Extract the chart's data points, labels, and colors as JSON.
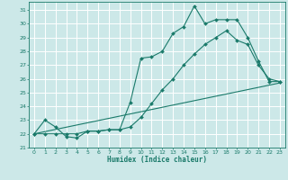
{
  "xlabel": "Humidex (Indice chaleur)",
  "bg_color": "#cce8e8",
  "grid_color": "#ffffff",
  "line_color": "#1a7a6a",
  "xlim": [
    -0.5,
    23.5
  ],
  "ylim": [
    21,
    31.6
  ],
  "xticks": [
    0,
    1,
    2,
    3,
    4,
    5,
    6,
    7,
    8,
    9,
    10,
    11,
    12,
    13,
    14,
    15,
    16,
    17,
    18,
    19,
    20,
    21,
    22,
    23
  ],
  "yticks": [
    21,
    22,
    23,
    24,
    25,
    26,
    27,
    28,
    29,
    30,
    31
  ],
  "line1_x": [
    0,
    1,
    2,
    3,
    4,
    5,
    6,
    7,
    8,
    9,
    10,
    11,
    12,
    13,
    14,
    15,
    16,
    17,
    18,
    19,
    20,
    21,
    22,
    23
  ],
  "line1_y": [
    22.0,
    23.0,
    22.5,
    21.8,
    21.7,
    22.2,
    22.2,
    22.3,
    22.3,
    24.3,
    27.5,
    27.6,
    28.0,
    29.3,
    29.8,
    31.3,
    30.0,
    30.3,
    30.3,
    30.3,
    29.0,
    27.3,
    25.8,
    25.8
  ],
  "line2_x": [
    0,
    1,
    2,
    3,
    4,
    5,
    6,
    7,
    8,
    9,
    10,
    11,
    12,
    13,
    14,
    15,
    16,
    17,
    18,
    19,
    20,
    21,
    22,
    23
  ],
  "line2_y": [
    22.0,
    22.0,
    22.0,
    22.0,
    22.0,
    22.2,
    22.2,
    22.3,
    22.3,
    22.5,
    23.2,
    24.2,
    25.2,
    26.0,
    27.0,
    27.8,
    28.5,
    29.0,
    29.5,
    28.8,
    28.5,
    27.0,
    26.0,
    25.8
  ],
  "line3_x": [
    0,
    23
  ],
  "line3_y": [
    22.0,
    25.7
  ]
}
